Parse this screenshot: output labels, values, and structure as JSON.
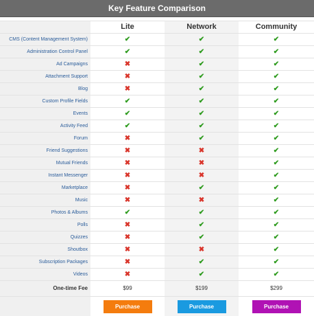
{
  "title": "Key Feature Comparison",
  "plans": [
    {
      "name": "Lite",
      "price": "$99",
      "button": "Purchase",
      "button_color": "#f47c0e"
    },
    {
      "name": "Network",
      "price": "$199",
      "button": "Purchase",
      "button_color": "#1a9ae0"
    },
    {
      "name": "Community",
      "price": "$299",
      "button": "Purchase",
      "button_color": "#b012b4"
    }
  ],
  "fee_label": "One-time Fee",
  "colors": {
    "check": "#2e9b1e",
    "cross": "#d9352b",
    "title_bar": "#6b6b6b",
    "label_text": "#2a5c9a"
  },
  "features": [
    {
      "name": "CMS (Content Management System)",
      "marks": [
        "check-icon",
        "check-icon",
        "check-icon"
      ]
    },
    {
      "name": "Administration Control Panel",
      "marks": [
        "check-icon",
        "check-icon",
        "check-icon"
      ]
    },
    {
      "name": "Ad Campaigns",
      "marks": [
        "cross-icon",
        "check-icon",
        "check-icon"
      ]
    },
    {
      "name": "Attachment Support",
      "marks": [
        "cross-icon",
        "check-icon",
        "check-icon"
      ]
    },
    {
      "name": "Blog",
      "marks": [
        "cross-icon",
        "check-icon",
        "check-icon"
      ]
    },
    {
      "name": "Custom Profile Fields",
      "marks": [
        "check-icon",
        "check-icon",
        "check-icon"
      ]
    },
    {
      "name": "Events",
      "marks": [
        "check-icon",
        "check-icon",
        "check-icon"
      ]
    },
    {
      "name": "Activity Feed",
      "marks": [
        "check-icon",
        "check-icon",
        "check-icon"
      ]
    },
    {
      "name": "Forum",
      "marks": [
        "cross-icon",
        "check-icon",
        "check-icon"
      ]
    },
    {
      "name": "Friend Suggestions",
      "marks": [
        "cross-icon",
        "cross-icon",
        "check-icon"
      ]
    },
    {
      "name": "Mutual Friends",
      "marks": [
        "cross-icon",
        "cross-icon",
        "check-icon"
      ]
    },
    {
      "name": "Instant Messenger",
      "marks": [
        "cross-icon",
        "cross-icon",
        "check-icon"
      ]
    },
    {
      "name": "Marketplace",
      "marks": [
        "cross-icon",
        "check-icon",
        "check-icon"
      ]
    },
    {
      "name": "Music",
      "marks": [
        "cross-icon",
        "cross-icon",
        "check-icon"
      ]
    },
    {
      "name": "Photos & Albums",
      "marks": [
        "check-icon",
        "check-icon",
        "check-icon"
      ]
    },
    {
      "name": "Polls",
      "marks": [
        "cross-icon",
        "check-icon",
        "check-icon"
      ]
    },
    {
      "name": "Quizzes",
      "marks": [
        "cross-icon",
        "check-icon",
        "check-icon"
      ]
    },
    {
      "name": "Shoutbox",
      "marks": [
        "cross-icon",
        "cross-icon",
        "check-icon"
      ]
    },
    {
      "name": "Subscription Packages",
      "marks": [
        "cross-icon",
        "check-icon",
        "check-icon"
      ]
    },
    {
      "name": "Videos",
      "marks": [
        "cross-icon",
        "check-icon",
        "check-icon"
      ]
    }
  ]
}
